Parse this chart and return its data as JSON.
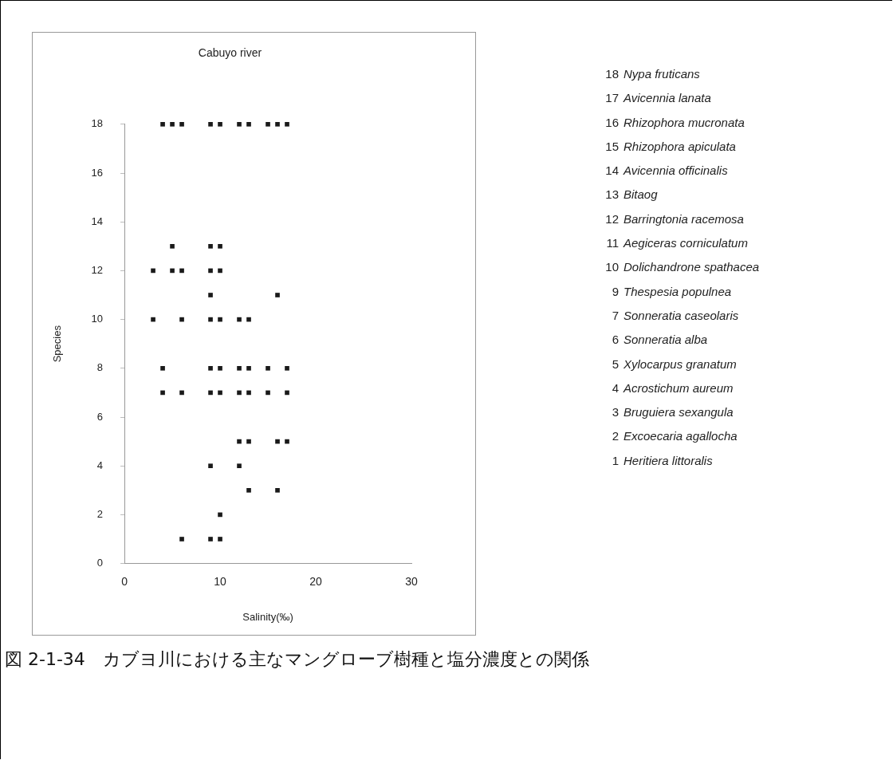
{
  "chart_data": {
    "type": "scatter",
    "title": "Cabuyo river",
    "xlabel": "Salinity(‰)",
    "ylabel": "Species",
    "series": [
      {
        "color": "#1a1a1a",
        "x": [
          4,
          5,
          6,
          9,
          10,
          12,
          13,
          15,
          16,
          17,
          5,
          9,
          10,
          3,
          5,
          6,
          9,
          10,
          9,
          16,
          3,
          6,
          9,
          10,
          12,
          13,
          4,
          9,
          10,
          12,
          13,
          15,
          17,
          4,
          6,
          9,
          10,
          12,
          13,
          15,
          17,
          12,
          13,
          16,
          17,
          9,
          12,
          13,
          16,
          10,
          6,
          9,
          10
        ],
        "values": [
          18,
          18,
          18,
          18,
          18,
          18,
          18,
          18,
          18,
          18,
          13,
          13,
          13,
          12,
          12,
          12,
          12,
          12,
          11,
          11,
          10,
          10,
          10,
          10,
          10,
          10,
          8,
          8,
          8,
          8,
          8,
          8,
          8,
          7,
          7,
          7,
          7,
          7,
          7,
          7,
          7,
          5,
          5,
          5,
          5,
          4,
          4,
          3,
          3,
          2,
          1,
          1,
          1
        ]
      }
    ],
    "xlim": [
      0,
      30
    ],
    "xticks": [
      0,
      10,
      20,
      30
    ],
    "ylim": [
      0,
      18
    ],
    "yticks": [
      0,
      2,
      4,
      6,
      8,
      10,
      12,
      14,
      16,
      18
    ],
    "grid": false,
    "legend": false,
    "marker": "square",
    "annotations": [
      "18 Nypa fruticans",
      "17 Avicennia lanata",
      "16 Rhizophora mucronata",
      "15 Rhizophora apiculata",
      "14 Avicennia officinalis",
      "13 Bitaog",
      "12 Barringtonia racemosa",
      "11 Aegiceras corniculatum",
      "10 Dolichandrone spathacea",
      "9 Thespesia populnea",
      "7 Sonneratia caseolaris",
      "6 Sonneratia alba",
      "5 Xylocarpus granatum",
      "4 Acrostichum aureum",
      "3 Bruguiera sexangula",
      "2 Excoecaria agallocha",
      "1 Heritiera littoralis",
      "図 2-1-34　カブヨ川における主なマングローブ樹種と塩分濃度との関係"
    ]
  }
}
